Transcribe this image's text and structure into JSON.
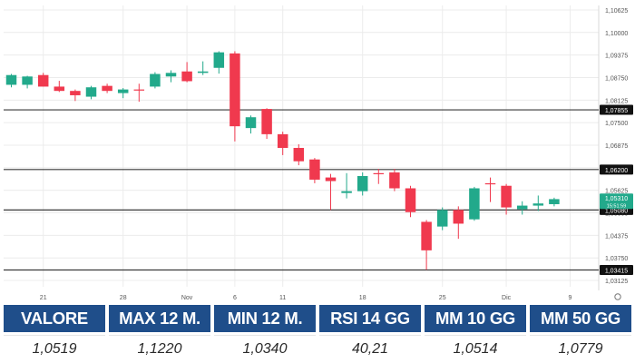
{
  "chart_data": {
    "type": "candlestick",
    "y_ticks": [
      "1,10625",
      "1,10000",
      "1,09375",
      "1,08750",
      "1,08125",
      "1,07500",
      "1,06875",
      "1,06250",
      "1,05625",
      "1,05000",
      "1,04375",
      "1,03750",
      "1,03125"
    ],
    "y_tick_values": [
      1.10625,
      1.1,
      1.09375,
      1.0875,
      1.08125,
      1.075,
      1.06875,
      1.0625,
      1.05625,
      1.05,
      1.04375,
      1.0375,
      1.03125
    ],
    "ylim": [
      1.0295,
      1.1075
    ],
    "x_ticks": [
      {
        "label": "21",
        "idx": 2
      },
      {
        "label": "28",
        "idx": 7
      },
      {
        "label": "Nov",
        "idx": 11
      },
      {
        "label": "6",
        "idx": 14
      },
      {
        "label": "11",
        "idx": 17
      },
      {
        "label": "18",
        "idx": 22
      },
      {
        "label": "25",
        "idx": 27
      },
      {
        "label": "Dic",
        "idx": 31
      },
      {
        "label": "9",
        "idx": 35
      }
    ],
    "horizontal_levels": [
      {
        "label": "1,07855",
        "value": 1.07855
      },
      {
        "label": "1,06200",
        "value": 1.062
      },
      {
        "label": "1,05080",
        "value": 1.0508
      },
      {
        "label": "1,03415",
        "value": 1.03415
      }
    ],
    "current_price": {
      "label": "1,05310",
      "time": "15:51:59",
      "value": 1.0531
    },
    "candles": [
      {
        "o": 1.0855,
        "h": 1.0885,
        "l": 1.0848,
        "c": 1.0882
      },
      {
        "o": 1.0855,
        "h": 1.088,
        "l": 1.0845,
        "c": 1.0878
      },
      {
        "o": 1.0882,
        "h": 1.0888,
        "l": 1.085,
        "c": 1.085
      },
      {
        "o": 1.085,
        "h": 1.0866,
        "l": 1.0835,
        "c": 1.0838
      },
      {
        "o": 1.0838,
        "h": 1.0842,
        "l": 1.081,
        "c": 1.0826
      },
      {
        "o": 1.0822,
        "h": 1.0852,
        "l": 1.0815,
        "c": 1.0848
      },
      {
        "o": 1.0852,
        "h": 1.0858,
        "l": 1.0832,
        "c": 1.0838
      },
      {
        "o": 1.0832,
        "h": 1.0846,
        "l": 1.0818,
        "c": 1.0842
      },
      {
        "o": 1.0842,
        "h": 1.0858,
        "l": 1.0808,
        "c": 1.084
      },
      {
        "o": 1.085,
        "h": 1.089,
        "l": 1.0845,
        "c": 1.0885
      },
      {
        "o": 1.0878,
        "h": 1.0895,
        "l": 1.0862,
        "c": 1.0888
      },
      {
        "o": 1.0892,
        "h": 1.0918,
        "l": 1.0862,
        "c": 1.0865
      },
      {
        "o": 1.0888,
        "h": 1.092,
        "l": 1.0882,
        "c": 1.0892
      },
      {
        "o": 1.0902,
        "h": 1.0948,
        "l": 1.0886,
        "c": 1.0945
      },
      {
        "o": 1.0942,
        "h": 1.0948,
        "l": 1.0698,
        "c": 1.074
      },
      {
        "o": 1.0735,
        "h": 1.077,
        "l": 1.072,
        "c": 1.0765
      },
      {
        "o": 1.0788,
        "h": 1.079,
        "l": 1.0705,
        "c": 1.0718
      },
      {
        "o": 1.0718,
        "h": 1.0725,
        "l": 1.066,
        "c": 1.068
      },
      {
        "o": 1.068,
        "h": 1.069,
        "l": 1.0632,
        "c": 1.0643
      },
      {
        "o": 1.0648,
        "h": 1.0652,
        "l": 1.0582,
        "c": 1.0592
      },
      {
        "o": 1.0598,
        "h": 1.0608,
        "l": 1.0508,
        "c": 1.0588
      },
      {
        "o": 1.0555,
        "h": 1.061,
        "l": 1.054,
        "c": 1.056
      },
      {
        "o": 1.056,
        "h": 1.0612,
        "l": 1.0548,
        "c": 1.0602
      },
      {
        "o": 1.061,
        "h": 1.0622,
        "l": 1.058,
        "c": 1.0608
      },
      {
        "o": 1.0612,
        "h": 1.0622,
        "l": 1.056,
        "c": 1.0568
      },
      {
        "o": 1.0568,
        "h": 1.0575,
        "l": 1.0488,
        "c": 1.0502
      },
      {
        "o": 1.0475,
        "h": 1.048,
        "l": 1.0342,
        "c": 1.0396
      },
      {
        "o": 1.0462,
        "h": 1.0515,
        "l": 1.0452,
        "c": 1.0508
      },
      {
        "o": 1.0508,
        "h": 1.0518,
        "l": 1.0428,
        "c": 1.047
      },
      {
        "o": 1.0482,
        "h": 1.0572,
        "l": 1.0478,
        "c": 1.0568
      },
      {
        "o": 1.0582,
        "h": 1.0598,
        "l": 1.053,
        "c": 1.058
      },
      {
        "o": 1.0575,
        "h": 1.058,
        "l": 1.0495,
        "c": 1.0515
      },
      {
        "o": 1.051,
        "h": 1.0532,
        "l": 1.0495,
        "c": 1.052
      },
      {
        "o": 1.052,
        "h": 1.0548,
        "l": 1.0505,
        "c": 1.0526
      },
      {
        "o": 1.0524,
        "h": 1.0542,
        "l": 1.0518,
        "c": 1.0538
      }
    ],
    "colors": {
      "up": "#22a98b",
      "down": "#f0394e",
      "grid": "#ececec",
      "level": "#3a3a3a",
      "axis_text": "#555555"
    }
  },
  "stats_table": {
    "headers": [
      "VALORE",
      "MAX 12 M.",
      "MIN 12 M.",
      "RSI 14 GG",
      "MM 10 GG",
      "MM 50 GG"
    ],
    "values": [
      "1,0519",
      "1,1220",
      "1,0340",
      "40,21",
      "1,0514",
      "1,0779"
    ],
    "header_color": "#1f4e8a"
  }
}
